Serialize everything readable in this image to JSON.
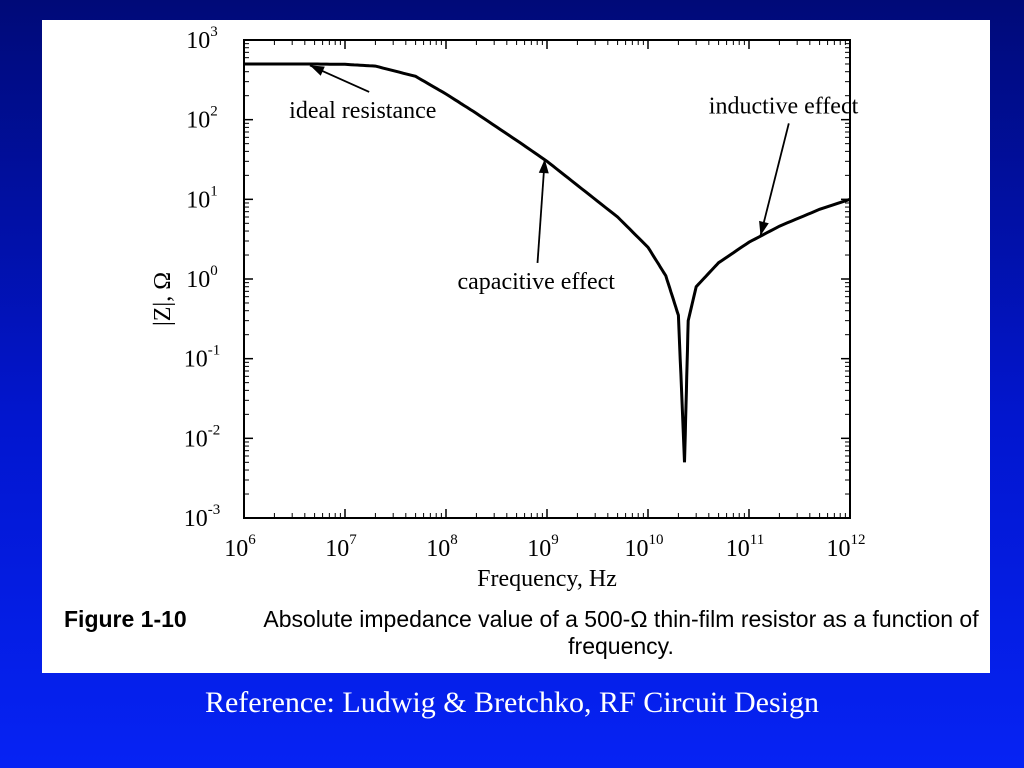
{
  "chart_data": {
    "type": "line",
    "xlabel": "Frequency, Hz",
    "ylabel": "|Z|, Ω",
    "x_scale": "log",
    "y_scale": "log",
    "xlim": [
      1000000.0,
      1000000000000.0
    ],
    "ylim": [
      0.001,
      1000
    ],
    "x_ticks": [
      {
        "base": "10",
        "exp": "6",
        "value": 1000000.0
      },
      {
        "base": "10",
        "exp": "7",
        "value": 10000000.0
      },
      {
        "base": "10",
        "exp": "8",
        "value": 100000000.0
      },
      {
        "base": "10",
        "exp": "9",
        "value": 1000000000.0
      },
      {
        "base": "10",
        "exp": "10",
        "value": 10000000000.0
      },
      {
        "base": "10",
        "exp": "11",
        "value": 100000000000.0
      },
      {
        "base": "10",
        "exp": "12",
        "value": 1000000000000.0
      }
    ],
    "y_ticks": [
      {
        "base": "10",
        "exp": "3",
        "value": 1000
      },
      {
        "base": "10",
        "exp": "2",
        "value": 100
      },
      {
        "base": "10",
        "exp": "1",
        "value": 10
      },
      {
        "base": "10",
        "exp": "0",
        "value": 1
      },
      {
        "base": "10",
        "exp": "-1",
        "value": 0.1
      },
      {
        "base": "10",
        "exp": "-2",
        "value": 0.01
      },
      {
        "base": "10",
        "exp": "-3",
        "value": 0.001
      }
    ],
    "grid": false,
    "series": [
      {
        "x": [
          1000000.0,
          2000000.0,
          5000000.0,
          10000000.0,
          20000000.0,
          50000000.0,
          100000000.0,
          200000000.0,
          500000000.0,
          1000000000.0,
          2000000000.0,
          5000000000.0,
          10000000000.0,
          15000000000.0,
          20000000000.0,
          23000000000.0,
          25000000000.0,
          30000000000.0,
          50000000000.0,
          100000000000.0,
          200000000000.0,
          500000000000.0,
          1000000000000.0
        ],
        "y": [
          500,
          500,
          500,
          495,
          470,
          350,
          210,
          120,
          55,
          30,
          15,
          6,
          2.5,
          1.1,
          0.35,
          0.005,
          0.3,
          0.8,
          1.6,
          2.9,
          4.6,
          7.5,
          10
        ]
      }
    ],
    "annotations": [
      {
        "text": "ideal resistance",
        "text_x": 2800000.0,
        "text_y": 105,
        "point_x": 4500000.0,
        "point_y": 480
      },
      {
        "text": "capacitive effect",
        "text_x": 130000000.0,
        "text_y": 0.75,
        "point_x": 950000000.0,
        "point_y": 32
      },
      {
        "text": "inductive effect",
        "text_x": 40000000000.0,
        "text_y": 120,
        "point_x": 130000000000.0,
        "point_y": 3.5
      }
    ]
  },
  "caption": {
    "label": "Figure 1-10",
    "text": "Absolute impedance value of a 500-Ω thin-film resistor as a function of frequency."
  },
  "reference": "Reference: Ludwig & Bretchko, RF Circuit Design",
  "colors": {
    "background_top": "#000a78",
    "background_bottom": "#0623f4",
    "panel": "#ffffff",
    "line": "#000000",
    "reference_text": "#ffffff"
  }
}
